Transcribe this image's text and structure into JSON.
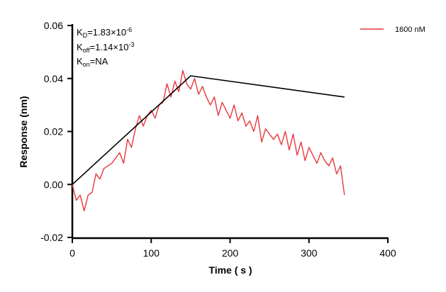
{
  "chart_data": {
    "type": "line",
    "xlabel": "Time ( s )",
    "ylabel": "Response (nm)",
    "xlim": [
      0,
      400
    ],
    "ylim": [
      -0.02,
      0.06
    ],
    "xticks": [
      "0",
      "100",
      "200",
      "300",
      "400"
    ],
    "yticks": [
      "-0.02",
      "0.00",
      "0.02",
      "0.04",
      "0.06"
    ],
    "grid": false,
    "legend_position": "top-right",
    "annotations": {
      "kd_label": "K",
      "kd_sub": "D",
      "kd_value": "=1.83×10",
      "kd_exp": "-6",
      "koff_label": "K",
      "koff_sub": "off",
      "koff_value": "=1.14×10",
      "koff_exp": "-3",
      "kon_label": "K",
      "kon_sub": "on",
      "kon_value": "=NA"
    },
    "series": [
      {
        "name": "1600 nM",
        "color": "#e8383d",
        "x": [
          0,
          5,
          10,
          15,
          20,
          25,
          30,
          35,
          40,
          45,
          50,
          55,
          60,
          65,
          70,
          75,
          80,
          85,
          90,
          95,
          100,
          105,
          110,
          115,
          120,
          125,
          130,
          135,
          140,
          145,
          150,
          155,
          160,
          165,
          170,
          175,
          180,
          185,
          190,
          195,
          200,
          205,
          210,
          215,
          220,
          225,
          230,
          235,
          240,
          245,
          250,
          255,
          260,
          265,
          270,
          275,
          280,
          285,
          290,
          295,
          300,
          305,
          310,
          315,
          320,
          325,
          330,
          335,
          340,
          345
        ],
        "y": [
          0.0,
          -0.006,
          -0.004,
          -0.01,
          -0.004,
          -0.003,
          0.004,
          0.002,
          0.006,
          0.007,
          0.008,
          0.01,
          0.012,
          0.008,
          0.017,
          0.014,
          0.021,
          0.026,
          0.022,
          0.026,
          0.028,
          0.025,
          0.03,
          0.031,
          0.038,
          0.033,
          0.039,
          0.035,
          0.043,
          0.038,
          0.036,
          0.04,
          0.034,
          0.037,
          0.033,
          0.03,
          0.033,
          0.026,
          0.031,
          0.028,
          0.025,
          0.03,
          0.024,
          0.027,
          0.022,
          0.024,
          0.02,
          0.026,
          0.016,
          0.021,
          0.019,
          0.017,
          0.019,
          0.015,
          0.02,
          0.013,
          0.019,
          0.011,
          0.016,
          0.009,
          0.014,
          0.011,
          0.008,
          0.012,
          0.009,
          0.007,
          0.01,
          0.004,
          0.007,
          -0.004
        ]
      },
      {
        "color": "#000000",
        "x": [
          0,
          150,
          345
        ],
        "y": [
          0.0,
          0.041,
          0.033
        ]
      }
    ]
  }
}
